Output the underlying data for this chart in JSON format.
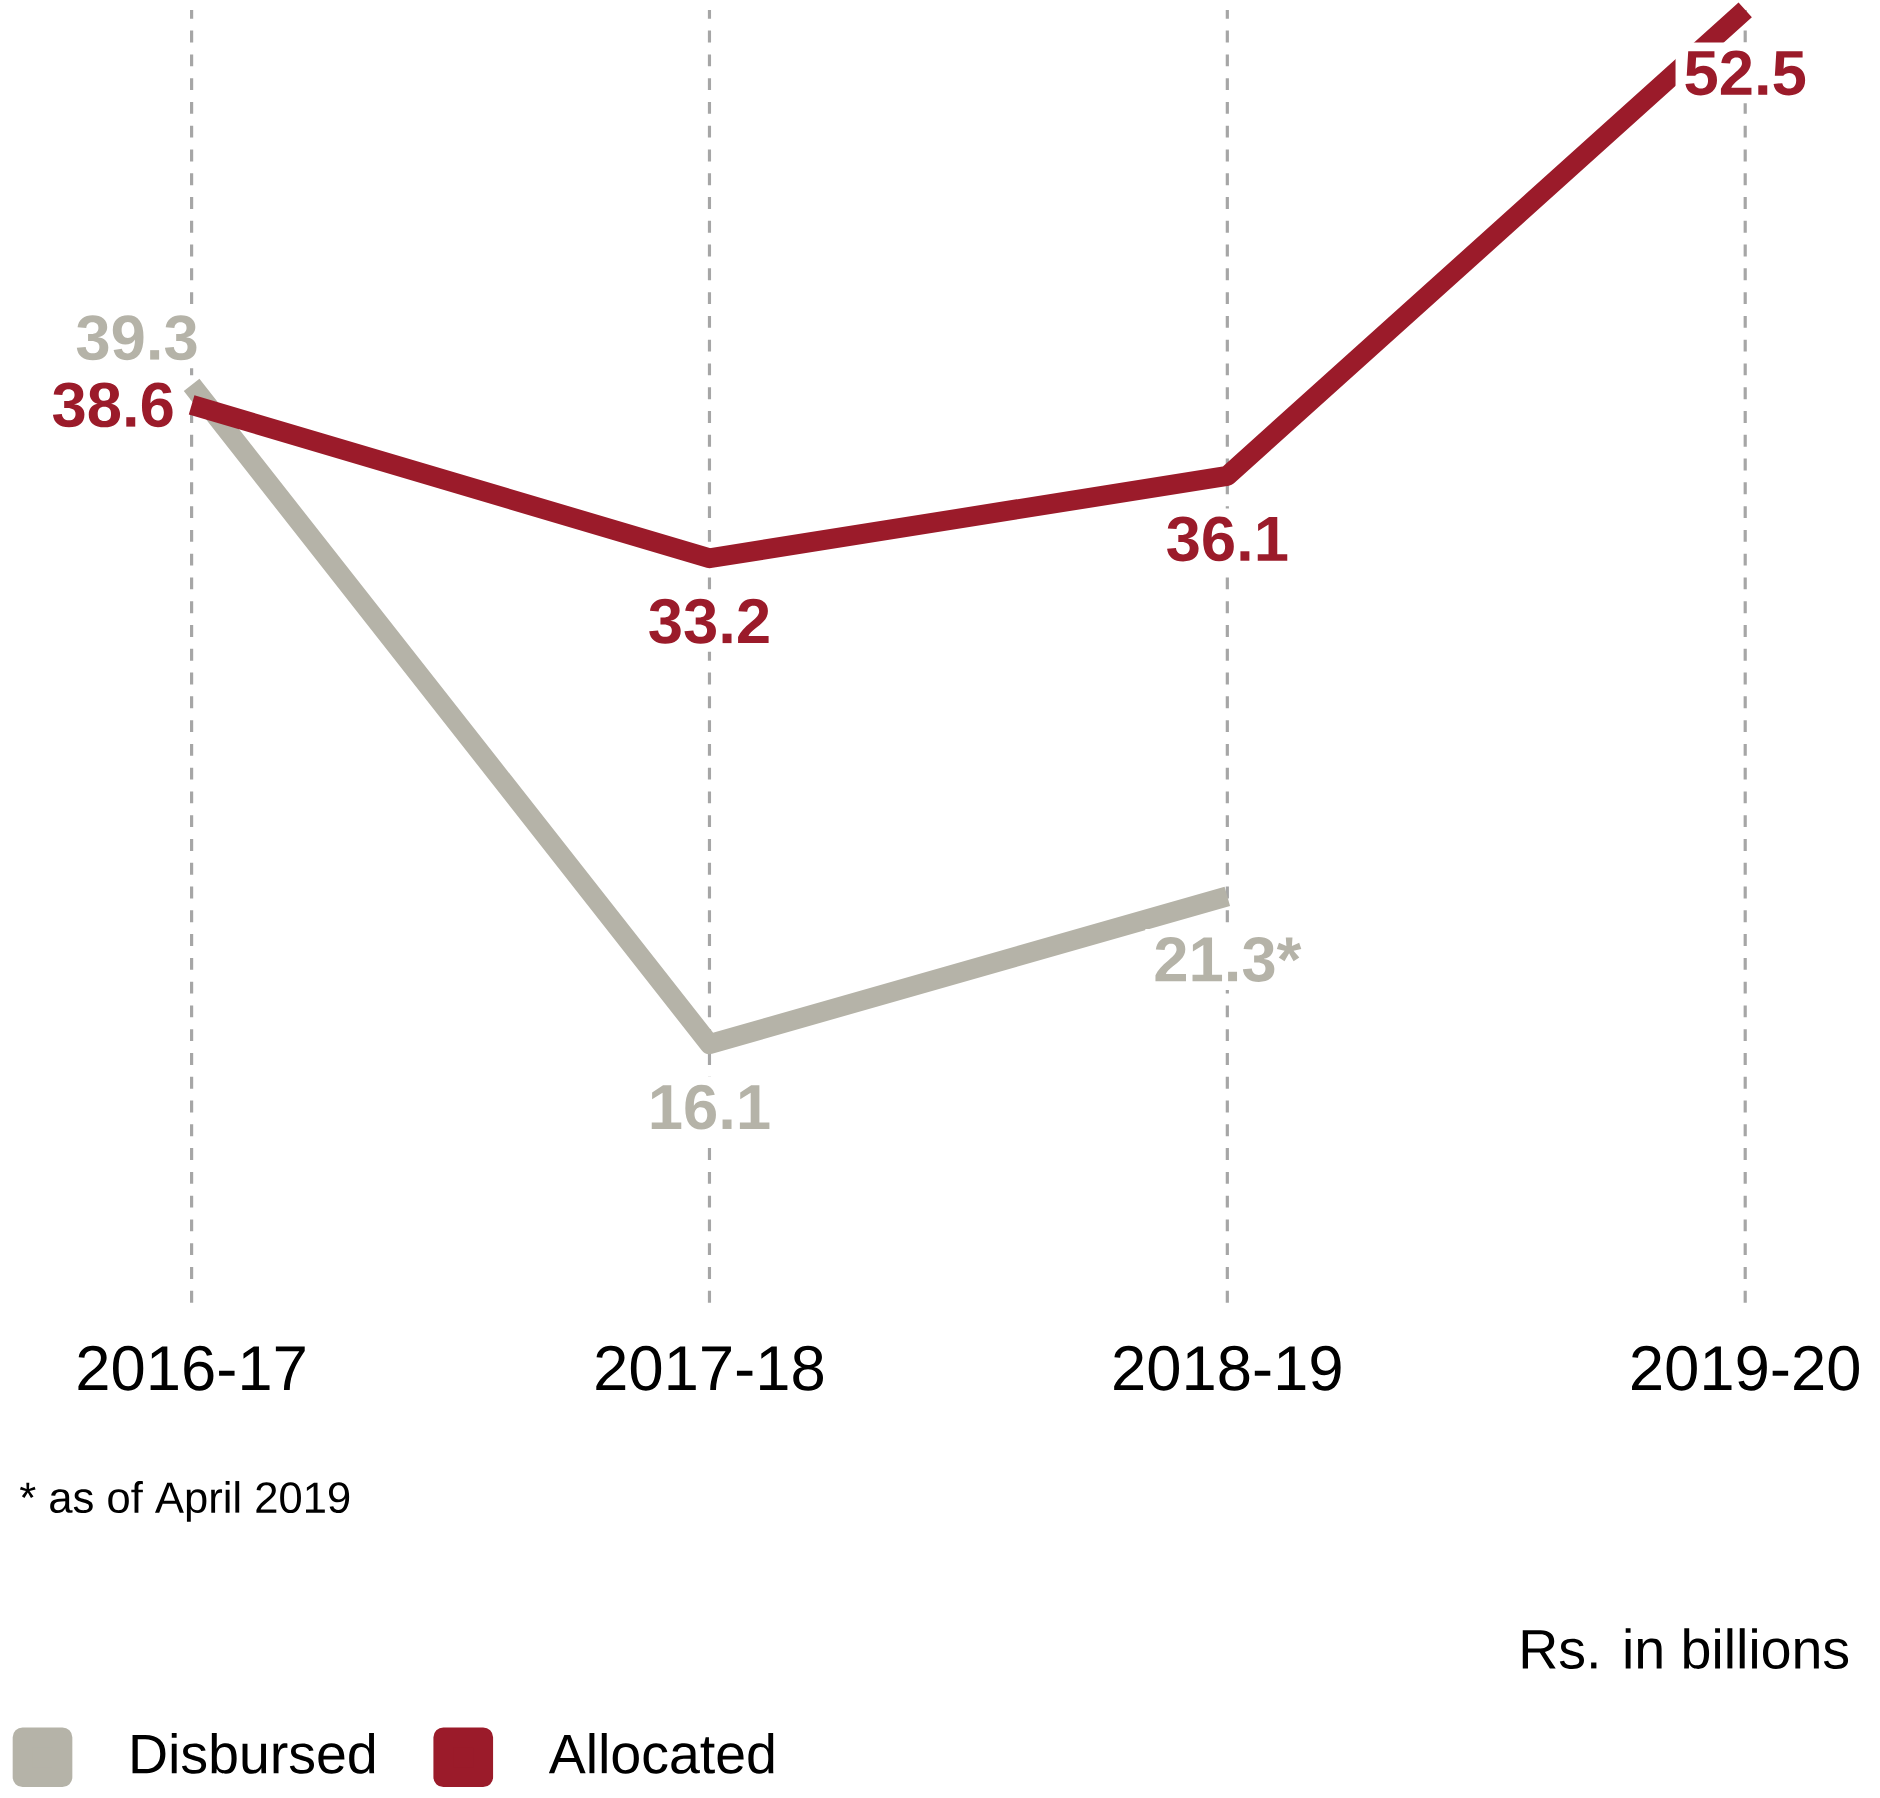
{
  "chart_data": {
    "type": "line",
    "categories": [
      "2016-17",
      "2017-18",
      "2018-19",
      "2019-20"
    ],
    "series": [
      {
        "name": "Disbursed",
        "color": "#b5b3a8",
        "values": [
          39.3,
          16.1,
          21.3,
          null
        ],
        "value_labels": [
          "39.3",
          "16.1",
          "21.3*",
          null
        ]
      },
      {
        "name": "Allocated",
        "color": "#9b1b2a",
        "values": [
          38.6,
          33.2,
          36.1,
          52.5
        ]
      }
    ],
    "data_labels": true,
    "grid": "x",
    "legend": "bottom left",
    "annotations": [
      "* as of April 2019",
      "Rs. in billions"
    ]
  }
}
